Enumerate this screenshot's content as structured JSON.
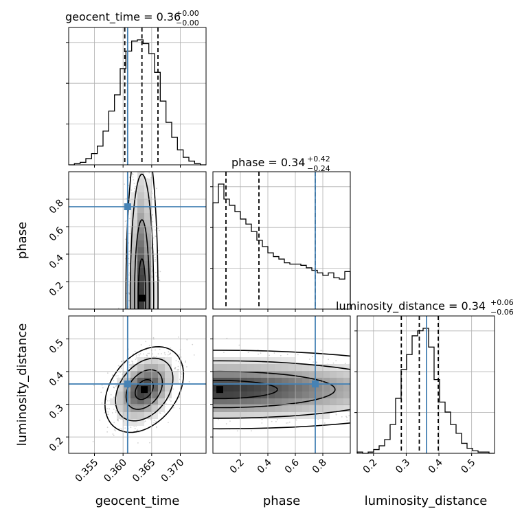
{
  "chart_data": {
    "type": "corner",
    "parameters": [
      "geocent_time",
      "phase",
      "luminosity_distance"
    ],
    "titles": [
      {
        "name": "geocent_time",
        "median": "0.36",
        "plus": "+0.00",
        "minus": "−0.00"
      },
      {
        "name": "phase",
        "median": "0.34",
        "plus": "+0.42",
        "minus": "−0.24"
      },
      {
        "name": "luminosity_distance",
        "median": "0.34",
        "plus": "+0.06",
        "minus": "−0.06"
      }
    ],
    "ranges": [
      [
        0.3505,
        0.3745
      ],
      [
        0.0,
        1.0
      ],
      [
        0.15,
        0.57
      ]
    ],
    "ticks": [
      {
        "values": [
          0.355,
          0.36,
          0.365,
          0.37
        ],
        "labels": [
          "0.355",
          "0.360",
          "0.365",
          "0.370"
        ]
      },
      {
        "values": [
          0.2,
          0.4,
          0.6,
          0.8
        ],
        "labels": [
          "0.2",
          "0.4",
          "0.6",
          "0.8"
        ]
      },
      {
        "values": [
          0.2,
          0.3,
          0.4,
          0.5
        ],
        "labels": [
          "0.2",
          "0.3",
          "0.4",
          "0.5"
        ]
      }
    ],
    "truths": [
      0.3608,
      0.745,
      0.362
    ],
    "quantiles": [
      [
        0.3603,
        0.3633,
        0.3661
      ],
      [
        0.095,
        0.335,
        0.745
      ],
      [
        0.285,
        0.34,
        0.398
      ]
    ],
    "histograms": [
      [
        0.0,
        0.01,
        0.02,
        0.05,
        0.09,
        0.15,
        0.27,
        0.43,
        0.56,
        0.77,
        0.91,
        0.99,
        1.0,
        0.97,
        0.89,
        0.74,
        0.51,
        0.34,
        0.22,
        0.12,
        0.06,
        0.03,
        0.01,
        0.0
      ],
      [
        0.85,
        1.0,
        0.88,
        0.83,
        0.78,
        0.72,
        0.68,
        0.62,
        0.55,
        0.5,
        0.45,
        0.42,
        0.4,
        0.37,
        0.36,
        0.36,
        0.35,
        0.33,
        0.31,
        0.29,
        0.27,
        0.29,
        0.25,
        0.24,
        0.3
      ],
      [
        0.01,
        0.0,
        0.01,
        0.03,
        0.06,
        0.11,
        0.23,
        0.44,
        0.67,
        0.79,
        0.94,
        0.98,
        1.0,
        0.85,
        0.59,
        0.41,
        0.33,
        0.23,
        0.16,
        0.08,
        0.04,
        0.02,
        0.01,
        0.01,
        0.0
      ]
    ],
    "histogram_unit": "fraction of peak",
    "density_centers": {
      "geocent_time_phase": [
        0.3633,
        0.08
      ],
      "geocent_time_luminosity_distance": [
        0.3637,
        0.345
      ],
      "phase_luminosity_distance": [
        0.05,
        0.345
      ]
    },
    "colors": {
      "truth": "#4682b4",
      "hist": "#000000",
      "grid": "#b0b0b0",
      "points": "#9a9a9a"
    }
  }
}
